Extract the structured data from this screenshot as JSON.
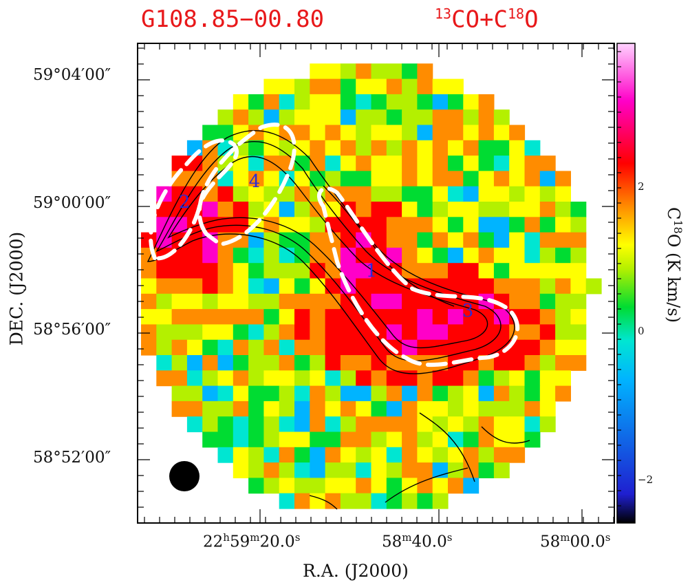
{
  "header": {
    "title_source": "G108.85−00.80",
    "title_lines": "13CO+C18O"
  },
  "axes": {
    "xlabel": "R.A. (J2000)",
    "ylabel": "DEC. (J2000)",
    "xtick_labels": [
      "22h59m20.0s",
      "58m40.0s",
      "58m00.0s"
    ],
    "ytick_labels": [
      "59°04′00″",
      "59°00′00″",
      "58°56′00″",
      "58°52′00″"
    ]
  },
  "colorbar": {
    "label": "C18O (K km/s)",
    "ticks": [
      "2",
      "0",
      "−2"
    ],
    "range": [
      -2.6,
      3.6
    ]
  },
  "chart_data": {
    "type": "heatmap",
    "title": "G108.85−00.80  13CO+C18O",
    "xlabel": "R.A. (J2000)",
    "ylabel": "DEC. (J2000)",
    "colorbar_label": "C18O (K km/s)",
    "colorbar_ticks": [
      2,
      0,
      -2
    ],
    "colorbar_range": [
      -2.6,
      3.6
    ],
    "grid": false,
    "map_shape": "circle of ~22x22 pixels",
    "overlays": {
      "contours": "13CO integrated intensity, black lines",
      "dashed_ellipses": 3,
      "source_labels": [
        "1",
        "2",
        "3",
        "4"
      ],
      "beam": "filled circle, lower-left"
    },
    "colormap": [
      "#000000",
      "#1f1fd0",
      "#00b4ff",
      "#00e6d2",
      "#00dc32",
      "#b4f000",
      "#ffff00",
      "#ff8c00",
      "#ff0000",
      "#ff00c8",
      "#ffd2ff"
    ]
  }
}
